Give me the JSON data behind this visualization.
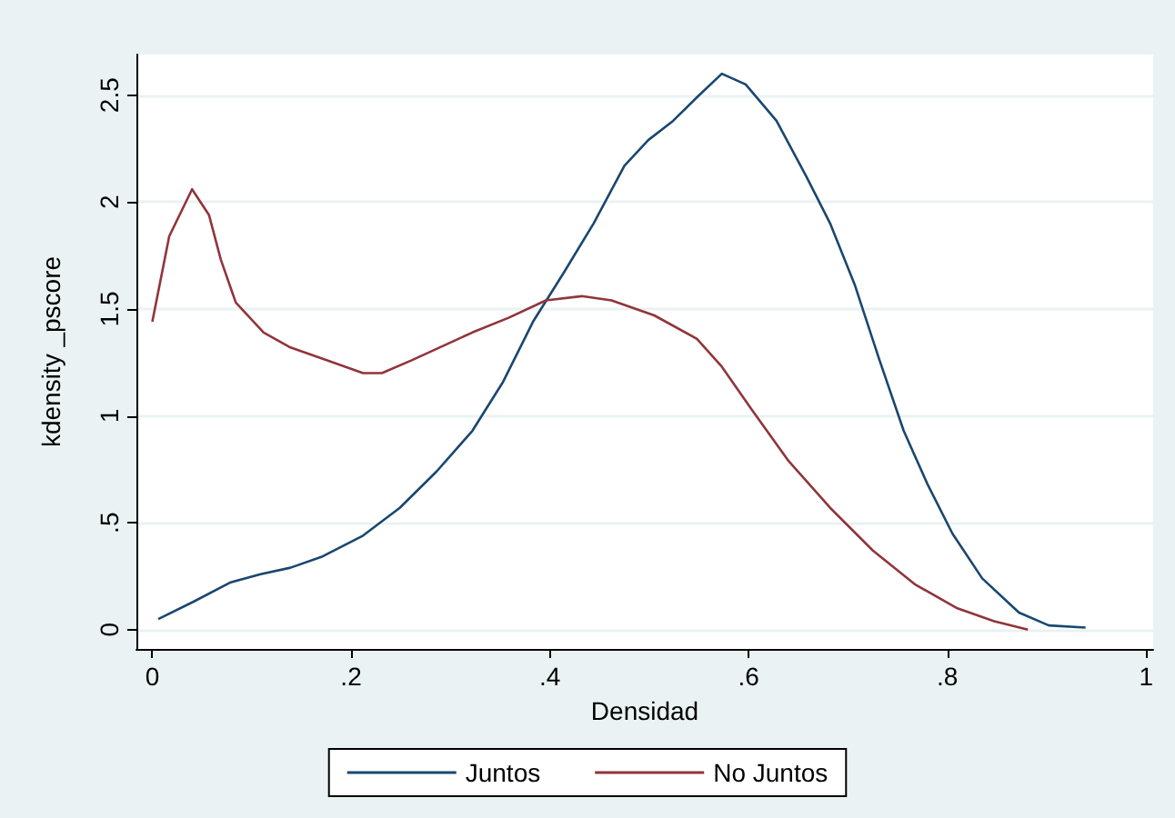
{
  "chart_data": {
    "type": "line",
    "xlabel": "Densidad",
    "ylabel": "kdensity _pscore",
    "xlim": [
      -0.016,
      1.007
    ],
    "ylim": [
      -0.09,
      2.69
    ],
    "xticks": [
      0,
      {
        "value": 0.2,
        "label": ".2"
      },
      {
        "value": 0.4,
        "label": ".4"
      },
      {
        "value": 0.6,
        "label": ".6"
      },
      {
        "value": 0.8,
        "label": ".8"
      },
      1
    ],
    "yticks": [
      0,
      {
        "value": 0.5,
        "label": ".5"
      },
      1,
      1.5,
      2,
      2.5
    ],
    "grid": "y",
    "legend": "bottom",
    "marker": "none",
    "line_style": "solid",
    "series": [
      {
        "name": "Juntos",
        "color": "#1a476f",
        "x": [
          0.006,
          0.041,
          0.078,
          0.109,
          0.139,
          0.17,
          0.212,
          0.249,
          0.286,
          0.322,
          0.353,
          0.383,
          0.414,
          0.444,
          0.475,
          0.499,
          0.524,
          0.548,
          0.573,
          0.597,
          0.628,
          0.658,
          0.682,
          0.707,
          0.731,
          0.756,
          0.78,
          0.805,
          0.835,
          0.872,
          0.902,
          0.939
        ],
        "values": [
          0.05,
          0.13,
          0.22,
          0.26,
          0.29,
          0.34,
          0.44,
          0.57,
          0.74,
          0.93,
          1.16,
          1.44,
          1.67,
          1.9,
          2.17,
          2.29,
          2.38,
          2.49,
          2.6,
          2.55,
          2.38,
          2.12,
          1.9,
          1.61,
          1.27,
          0.93,
          0.68,
          0.45,
          0.24,
          0.08,
          0.02,
          0.01
        ]
      },
      {
        "name": "No Juntos",
        "color": "#90353b",
        "x": [
          0,
          0.017,
          0.04,
          0.057,
          0.069,
          0.084,
          0.112,
          0.139,
          0.176,
          0.212,
          0.231,
          0.261,
          0.322,
          0.359,
          0.396,
          0.432,
          0.462,
          0.505,
          0.548,
          0.573,
          0.603,
          0.64,
          0.682,
          0.725,
          0.768,
          0.81,
          0.847,
          0.881
        ],
        "values": [
          1.44,
          1.84,
          2.06,
          1.94,
          1.73,
          1.53,
          1.39,
          1.32,
          1.26,
          1.2,
          1.2,
          1.26,
          1.39,
          1.46,
          1.54,
          1.56,
          1.54,
          1.47,
          1.36,
          1.23,
          1.03,
          0.79,
          0.57,
          0.37,
          0.21,
          0.1,
          0.04,
          0.0
        ]
      }
    ]
  }
}
